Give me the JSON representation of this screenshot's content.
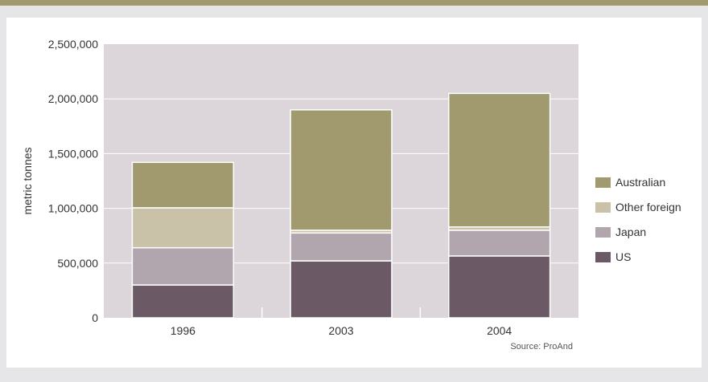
{
  "colors": {
    "top_bar": "#a09a6e",
    "plot_bg": "#dcd5da",
    "gridline": "#ffffff",
    "legend_bg": "#ffffff"
  },
  "chart_data": {
    "type": "bar",
    "stacked": true,
    "categories": [
      "1996",
      "2003",
      "2004"
    ],
    "series": [
      {
        "name": "US",
        "color": "#6b5965",
        "values": [
          300000,
          520000,
          565000
        ]
      },
      {
        "name": "Japan",
        "color": "#b1a5ae",
        "values": [
          340000,
          255000,
          235000
        ]
      },
      {
        "name": "Other foreign",
        "color": "#c9c2a9",
        "values": [
          365000,
          25000,
          30000
        ]
      },
      {
        "name": "Australian",
        "color": "#a09a6e",
        "values": [
          415000,
          1100000,
          1220000
        ]
      }
    ],
    "legend_order": [
      "Australian",
      "Other foreign",
      "Japan",
      "US"
    ],
    "ylabel": "metric tonnes",
    "ylim": [
      0,
      2500000
    ],
    "yticks": [
      0,
      500000,
      1000000,
      1500000,
      2000000,
      2500000
    ],
    "ytick_labels": [
      "0",
      "500,000",
      "1,000,000",
      "1,500,000",
      "2,000,000",
      "2,500,000"
    ],
    "grid": true,
    "legend_position": "right",
    "source": "Source: ProAnd"
  }
}
